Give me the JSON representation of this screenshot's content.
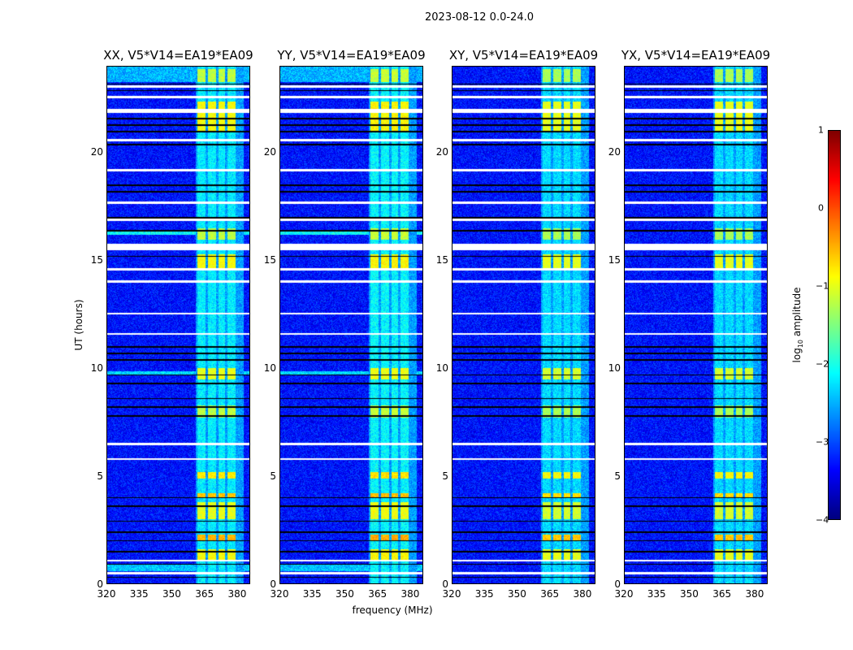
{
  "suptitle": "2023-08-12 0.0-24.0",
  "xlabel": "frequency (MHz)",
  "ylabel": "UT (hours)",
  "colorbar": {
    "label_main": "log",
    "label_sub": "10",
    "label_rest": " amplitude",
    "range": [
      -4,
      1
    ],
    "ticks": [
      "1",
      "0",
      "−1",
      "−2",
      "−3",
      "−4"
    ],
    "tick_values": [
      1,
      0,
      -1,
      -2,
      -3,
      -4
    ],
    "colormap": "jet"
  },
  "chart_data": {
    "type": "heatmap",
    "xlim": [
      320,
      386
    ],
    "ylim": [
      0,
      24
    ],
    "xticks": [
      "320",
      "335",
      "350",
      "365",
      "380"
    ],
    "xtick_values": [
      320,
      335,
      350,
      365,
      380
    ],
    "yticks": [
      "0",
      "5",
      "10",
      "15",
      "20"
    ],
    "ytick_values": [
      0,
      5,
      10,
      15,
      20
    ],
    "background_level": -3.3,
    "rfi_subbands_mhz": [
      [
        361.5,
        365.5
      ],
      [
        366.5,
        370.5
      ],
      [
        371.5,
        374.5
      ],
      [
        375.5,
        379.5
      ]
    ],
    "rfi_default_level": -2.0,
    "rfi_bright_intervals": [
      {
        "t": [
          21.0,
          22.4
        ],
        "level": -0.9
      },
      {
        "t": [
          23.3,
          23.9
        ],
        "level": -1.2
      },
      {
        "t": [
          1.1,
          1.6
        ],
        "level": -0.9
      },
      {
        "t": [
          2.0,
          2.3
        ],
        "level": -0.5
      },
      {
        "t": [
          3.0,
          3.8
        ],
        "level": -1.0
      },
      {
        "t": [
          4.0,
          4.2
        ],
        "level": -0.6
      },
      {
        "t": [
          4.9,
          5.2
        ],
        "level": -0.8
      },
      {
        "t": [
          7.7,
          8.3
        ],
        "level": -1.2
      },
      {
        "t": [
          9.5,
          10.0
        ],
        "level": -1.0
      },
      {
        "t": [
          14.6,
          15.3
        ],
        "level": -0.9
      },
      {
        "t": [
          16.0,
          16.5
        ],
        "level": -1.2
      }
    ],
    "flagged_gaps_hours": [
      [
        23.05,
        23.15
      ],
      [
        22.55,
        22.65
      ],
      [
        21.85,
        22.05
      ],
      [
        20.55,
        20.65
      ],
      [
        19.15,
        19.25
      ],
      [
        17.65,
        17.75
      ],
      [
        16.85,
        16.95
      ],
      [
        15.5,
        15.8
      ],
      [
        14.55,
        14.65
      ],
      [
        14.0,
        14.1
      ],
      [
        12.5,
        12.58
      ],
      [
        11.55,
        11.63
      ],
      [
        6.45,
        6.53
      ],
      [
        5.75,
        5.83
      ],
      [
        1.05,
        1.13
      ],
      [
        0.45,
        0.53
      ]
    ],
    "dropout_lines_hours": [
      23.2,
      22.9,
      21.6,
      21.3,
      21.0,
      20.4,
      18.5,
      18.2,
      17.0,
      16.4,
      15.2,
      14.6,
      11.0,
      10.7,
      10.4,
      9.7,
      9.3,
      8.6,
      8.2,
      7.8,
      4.0,
      3.6,
      2.9,
      2.4,
      2.0,
      1.5,
      0.9,
      0.3
    ],
    "panels": [
      {
        "title": "XX, V5*V14=EA19*EA09",
        "parallel_hand": true,
        "gain": 0.0
      },
      {
        "title": "YY, V5*V14=EA19*EA09",
        "parallel_hand": true,
        "gain": 0.05
      },
      {
        "title": "XY, V5*V14=EA19*EA09",
        "parallel_hand": false,
        "gain": -0.1
      },
      {
        "title": "YX, V5*V14=EA19*EA09",
        "parallel_hand": false,
        "gain": -0.1
      }
    ]
  }
}
